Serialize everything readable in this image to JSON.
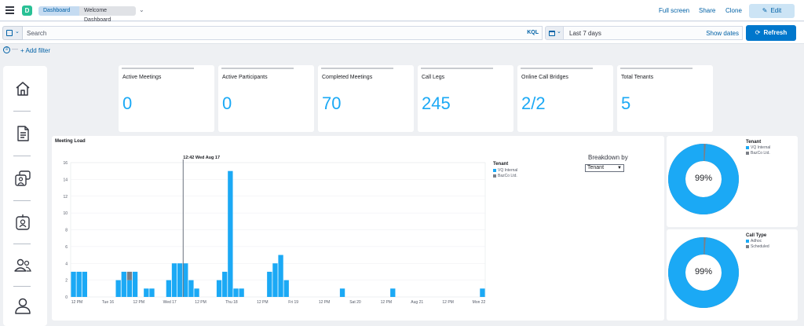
{
  "header": {
    "space_initial": "D",
    "breadcrumbs": [
      "Dashboard",
      "Welcome Dashboard"
    ],
    "actions": [
      "Full screen",
      "Share",
      "Clone"
    ],
    "edit_label": "Edit"
  },
  "query": {
    "search_placeholder": "Search",
    "kql_label": "KQL",
    "date_range": "Last 7 days",
    "show_dates_label": "Show dates",
    "refresh_label": "Refresh",
    "add_filter_label": "+ Add filter"
  },
  "sidenav": {
    "items": [
      "home-icon",
      "document-icon",
      "chat-users-icon",
      "user-badge-icon",
      "users-icon",
      "user-icon"
    ]
  },
  "stats": [
    {
      "label": "Active Meetings",
      "value": "0"
    },
    {
      "label": "Active Participants",
      "value": "0"
    },
    {
      "label": "Completed Meetings",
      "value": "70"
    },
    {
      "label": "Call Legs",
      "value": "245"
    },
    {
      "label": "Online Call Bridges",
      "value": "2/2"
    },
    {
      "label": "Total Tenants",
      "value": "5"
    }
  ],
  "meeting_load": {
    "title": "Meeting Load",
    "breakdown_label": "Breakdown by",
    "breakdown_value": "Tenant",
    "legend_title": "Tenant",
    "legend": [
      {
        "name": "VQ Internal",
        "color": "#1ba9f5"
      },
      {
        "name": "BazCo Ltd.",
        "color": "#7b7f87"
      }
    ],
    "cursor_label": "12:42 Wed Aug 17"
  },
  "chart_data": {
    "type": "bar",
    "stacked": true,
    "ylim": [
      0,
      16
    ],
    "yticks": [
      0,
      2,
      4,
      6,
      8,
      10,
      12,
      14,
      16
    ],
    "xticks": [
      "12 PM",
      "Tue 16",
      "12 PM",
      "Wed 17",
      "12 PM",
      "Thu 18",
      "12 PM",
      "Fri 19",
      "12 PM",
      "Sat 20",
      "12 PM",
      "Aug 21",
      "12 PM",
      "Mon 22"
    ],
    "cursor_at_bucket": 21,
    "buckets": 74,
    "series": [
      {
        "name": "VQ Internal",
        "color": "#1ba9f5",
        "values": [
          3,
          3,
          3,
          0,
          0,
          0,
          0,
          0,
          2,
          3,
          2,
          3,
          0,
          1,
          1,
          0,
          0,
          2,
          4,
          4,
          4,
          2,
          1,
          0,
          0,
          0,
          2,
          3,
          15,
          1,
          1,
          0,
          0,
          0,
          0,
          3,
          4,
          5,
          2,
          0,
          0,
          0,
          0,
          0,
          0,
          0,
          0,
          0,
          1,
          0,
          0,
          0,
          0,
          0,
          0,
          0,
          0,
          1,
          0,
          0,
          0,
          0,
          0,
          0,
          0,
          0,
          0,
          0,
          0,
          0,
          0,
          0,
          0,
          1
        ]
      },
      {
        "name": "BazCo Ltd.",
        "color": "#7b7f87",
        "values": [
          0,
          0,
          0,
          0,
          0,
          0,
          0,
          0,
          0,
          0,
          1,
          0,
          0,
          0,
          0,
          0,
          0,
          0,
          0,
          0,
          0,
          0,
          0,
          0,
          0,
          0,
          0,
          0,
          0,
          0,
          0,
          0,
          0,
          0,
          0,
          0,
          0,
          0,
          0,
          0,
          0,
          0,
          0,
          0,
          0,
          0,
          0,
          0,
          0,
          0,
          0,
          0,
          0,
          0,
          0,
          0,
          0,
          0,
          0,
          0,
          0,
          0,
          0,
          0,
          0,
          0,
          0,
          0,
          0,
          0,
          0,
          0,
          0,
          0
        ]
      }
    ]
  },
  "donuts": [
    {
      "legend_title": "Tenant",
      "legend": [
        {
          "name": "VQ Internal",
          "color": "#1ba9f5"
        },
        {
          "name": "BazCo Ltd.",
          "color": "#7b7f87"
        }
      ],
      "center_label": "99%",
      "percent": 99
    },
    {
      "legend_title": "Call Type",
      "legend": [
        {
          "name": "Adhoc",
          "color": "#1ba9f5"
        },
        {
          "name": "Scheduled",
          "color": "#7b7f87"
        }
      ],
      "center_label": "99%",
      "percent": 99
    }
  ]
}
